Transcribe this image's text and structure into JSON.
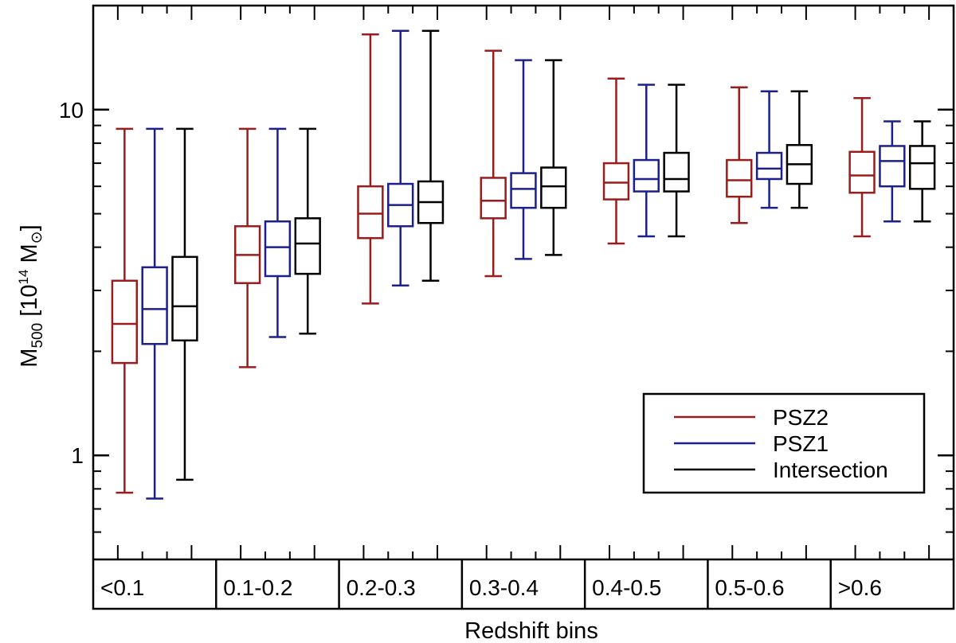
{
  "chart_data": {
    "type": "boxplot",
    "y_scale": "log",
    "ylim": [
      0.5,
      20
    ],
    "ylabel": "M",
    "ylabel_sub": "500",
    "ylabel_unit_prefix": " [10",
    "ylabel_unit_sup": "14",
    "ylabel_unit_suffix": " M",
    "ylabel_unit_symbol": "⊙",
    "ylabel_close": "]",
    "xlabel": "Redshift bins",
    "y_ticks": [
      {
        "value": 1,
        "label": "1"
      },
      {
        "value": 10,
        "label": "10"
      }
    ],
    "categories": [
      "<0.1",
      "0.1-0.2",
      "0.2-0.3",
      "0.3-0.4",
      "0.4-0.5",
      "0.5-0.6",
      ">0.6"
    ],
    "series": [
      {
        "name": "PSZ2",
        "color": "#9b1c1c",
        "boxes": [
          {
            "min": 0.78,
            "q1": 1.85,
            "median": 2.4,
            "q3": 3.2,
            "max": 8.8
          },
          {
            "min": 1.8,
            "q1": 3.15,
            "median": 3.8,
            "q3": 4.6,
            "max": 8.8
          },
          {
            "min": 2.75,
            "q1": 4.25,
            "median": 5.0,
            "q3": 6.0,
            "max": 16.5
          },
          {
            "min": 3.3,
            "q1": 4.85,
            "median": 5.45,
            "q3": 6.35,
            "max": 14.8
          },
          {
            "min": 4.1,
            "q1": 5.5,
            "median": 6.15,
            "q3": 7.0,
            "max": 12.3
          },
          {
            "min": 4.7,
            "q1": 5.6,
            "median": 6.25,
            "q3": 7.15,
            "max": 11.6
          },
          {
            "min": 4.3,
            "q1": 5.75,
            "median": 6.45,
            "q3": 7.55,
            "max": 10.8
          }
        ]
      },
      {
        "name": "PSZ1",
        "color": "#1c1f8c",
        "boxes": [
          {
            "min": 0.75,
            "q1": 2.1,
            "median": 2.65,
            "q3": 3.5,
            "max": 8.8
          },
          {
            "min": 2.2,
            "q1": 3.3,
            "median": 4.0,
            "q3": 4.75,
            "max": 8.8
          },
          {
            "min": 3.1,
            "q1": 4.6,
            "median": 5.3,
            "q3": 6.1,
            "max": 16.9
          },
          {
            "min": 3.7,
            "q1": 5.2,
            "median": 5.9,
            "q3": 6.55,
            "max": 13.9
          },
          {
            "min": 4.3,
            "q1": 5.8,
            "median": 6.3,
            "q3": 7.15,
            "max": 11.8
          },
          {
            "min": 5.2,
            "q1": 6.3,
            "median": 6.75,
            "q3": 7.5,
            "max": 11.3
          },
          {
            "min": 4.75,
            "q1": 6.0,
            "median": 7.1,
            "q3": 7.85,
            "max": 9.25
          }
        ]
      },
      {
        "name": "Intersection",
        "color": "#000000",
        "boxes": [
          {
            "min": 0.85,
            "q1": 2.15,
            "median": 2.7,
            "q3": 3.75,
            "max": 8.8
          },
          {
            "min": 2.25,
            "q1": 3.35,
            "median": 4.1,
            "q3": 4.85,
            "max": 8.8
          },
          {
            "min": 3.2,
            "q1": 4.7,
            "median": 5.4,
            "q3": 6.2,
            "max": 16.9
          },
          {
            "min": 3.8,
            "q1": 5.2,
            "median": 6.0,
            "q3": 6.8,
            "max": 13.9
          },
          {
            "min": 4.3,
            "q1": 5.8,
            "median": 6.3,
            "q3": 7.5,
            "max": 11.8
          },
          {
            "min": 5.2,
            "q1": 6.1,
            "median": 6.95,
            "q3": 7.9,
            "max": 11.3
          },
          {
            "min": 4.75,
            "q1": 5.9,
            "median": 7.0,
            "q3": 7.85,
            "max": 9.25
          }
        ]
      }
    ],
    "legend": {
      "position": "bottom-right",
      "items": [
        "PSZ2",
        "PSZ1",
        "Intersection"
      ]
    }
  }
}
